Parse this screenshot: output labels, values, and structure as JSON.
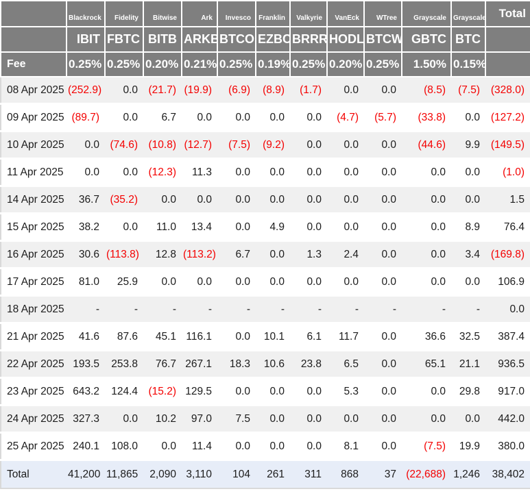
{
  "colors": {
    "header_bg": "#7f7f7f",
    "header_text": "#ffffff",
    "stripe_bg": "#f0f0f0",
    "total_row_bg": "#e7edf8",
    "negative_text": "#f40000",
    "text": "#1c1c1c"
  },
  "table": {
    "issuers": [
      "Blackrock",
      "Fidelity",
      "Bitwise",
      "Ark",
      "Invesco",
      "Franklin",
      "Valkyrie",
      "VanEck",
      "WTree",
      "Grayscale",
      "Grayscale"
    ],
    "total_header": "Total",
    "tickers": [
      "IBIT",
      "FBTC",
      "BITB",
      "ARKB",
      "BTCO",
      "EZBC",
      "BRRR",
      "HODL",
      "BTCW",
      "GBTC",
      "BTC"
    ],
    "fee_label": "Fee",
    "fees": [
      "0.25%",
      "0.25%",
      "0.20%",
      "0.21%",
      "0.25%",
      "0.19%",
      "0.25%",
      "0.20%",
      "0.25%",
      "1.50%",
      "0.15%"
    ],
    "rows": [
      {
        "date": "08 Apr 2025",
        "values": [
          "(252.9)",
          "0.0",
          "(21.7)",
          "(19.9)",
          "(6.9)",
          "(8.9)",
          "(1.7)",
          "0.0",
          "0.0",
          "(8.5)",
          "(7.5)",
          "(328.0)"
        ]
      },
      {
        "date": "09 Apr 2025",
        "values": [
          "(89.7)",
          "0.0",
          "6.7",
          "0.0",
          "0.0",
          "0.0",
          "0.0",
          "(4.7)",
          "(5.7)",
          "(33.8)",
          "0.0",
          "(127.2)"
        ]
      },
      {
        "date": "10 Apr 2025",
        "values": [
          "0.0",
          "(74.6)",
          "(10.8)",
          "(12.7)",
          "(7.5)",
          "(9.2)",
          "0.0",
          "0.0",
          "0.0",
          "(44.6)",
          "9.9",
          "(149.5)"
        ]
      },
      {
        "date": "11 Apr 2025",
        "values": [
          "0.0",
          "0.0",
          "(12.3)",
          "11.3",
          "0.0",
          "0.0",
          "0.0",
          "0.0",
          "0.0",
          "0.0",
          "0.0",
          "(1.0)"
        ]
      },
      {
        "date": "14 Apr 2025",
        "values": [
          "36.7",
          "(35.2)",
          "0.0",
          "0.0",
          "0.0",
          "0.0",
          "0.0",
          "0.0",
          "0.0",
          "0.0",
          "0.0",
          "1.5"
        ]
      },
      {
        "date": "15 Apr 2025",
        "values": [
          "38.2",
          "0.0",
          "11.0",
          "13.4",
          "0.0",
          "4.9",
          "0.0",
          "0.0",
          "0.0",
          "0.0",
          "8.9",
          "76.4"
        ]
      },
      {
        "date": "16 Apr 2025",
        "values": [
          "30.6",
          "(113.8)",
          "12.8",
          "(113.2)",
          "6.7",
          "0.0",
          "1.3",
          "2.4",
          "0.0",
          "0.0",
          "3.4",
          "(169.8)"
        ]
      },
      {
        "date": "17 Apr 2025",
        "values": [
          "81.0",
          "25.9",
          "0.0",
          "0.0",
          "0.0",
          "0.0",
          "0.0",
          "0.0",
          "0.0",
          "0.0",
          "0.0",
          "106.9"
        ]
      },
      {
        "date": "18 Apr 2025",
        "values": [
          "-",
          "-",
          "-",
          "-",
          "-",
          "-",
          "-",
          "-",
          "-",
          "-",
          "-",
          "0.0"
        ]
      },
      {
        "date": "21 Apr 2025",
        "values": [
          "41.6",
          "87.6",
          "45.1",
          "116.1",
          "0.0",
          "10.1",
          "6.1",
          "11.7",
          "0.0",
          "36.6",
          "32.5",
          "387.4"
        ]
      },
      {
        "date": "22 Apr 2025",
        "values": [
          "193.5",
          "253.8",
          "76.7",
          "267.1",
          "18.3",
          "10.6",
          "23.8",
          "6.5",
          "0.0",
          "65.1",
          "21.1",
          "936.5"
        ]
      },
      {
        "date": "23 Apr 2025",
        "values": [
          "643.2",
          "124.4",
          "(15.2)",
          "129.5",
          "0.0",
          "0.0",
          "0.0",
          "5.3",
          "0.0",
          "0.0",
          "29.8",
          "917.0"
        ]
      },
      {
        "date": "24 Apr 2025",
        "values": [
          "327.3",
          "0.0",
          "10.2",
          "97.0",
          "7.5",
          "0.0",
          "0.0",
          "0.0",
          "0.0",
          "0.0",
          "0.0",
          "442.0"
        ]
      },
      {
        "date": "25 Apr 2025",
        "values": [
          "240.1",
          "108.0",
          "0.0",
          "11.4",
          "0.0",
          "0.0",
          "0.0",
          "8.1",
          "0.0",
          "(7.5)",
          "19.9",
          "380.0"
        ]
      }
    ],
    "total_row": {
      "label": "Total",
      "values": [
        "41,200",
        "11,865",
        "2,090",
        "3,110",
        "104",
        "261",
        "311",
        "868",
        "37",
        "(22,688)",
        "1,246",
        "38,402"
      ]
    }
  }
}
